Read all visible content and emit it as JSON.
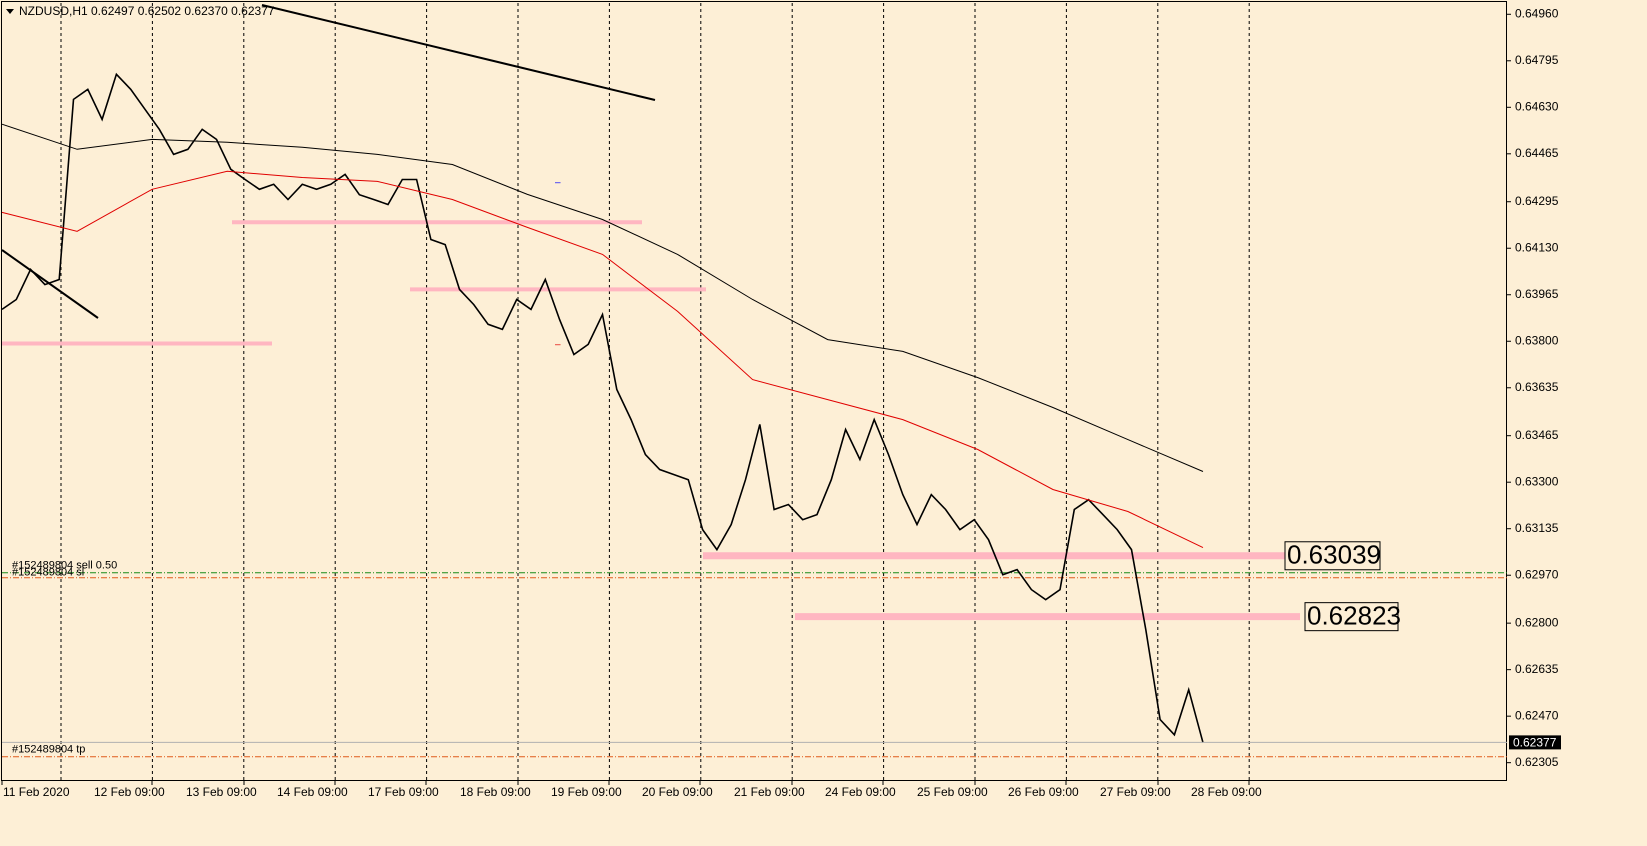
{
  "chart_data": {
    "type": "line",
    "header": "NZDUSD,H1  0.62497 0.62502 0.62370 0.62377",
    "xlabels": [
      "11 Feb 2020",
      "12 Feb 09:00",
      "13 Feb 09:00",
      "14 Feb 09:00",
      "17 Feb 09:00",
      "18 Feb 09:00",
      "19 Feb 09:00",
      "20 Feb 09:00",
      "21 Feb 09:00",
      "24 Feb 09:00",
      "25 Feb 09:00",
      "26 Feb 09:00",
      "27 Feb 09:00",
      "28 Feb 09:00"
    ],
    "ylim": [
      0.6224,
      0.65
    ],
    "yticks": [
      {
        "value": 0.6496,
        "label": "0.64960"
      },
      {
        "value": 0.64795,
        "label": "0.64795"
      },
      {
        "value": 0.6463,
        "label": "0.64630"
      },
      {
        "value": 0.64465,
        "label": "0.64465"
      },
      {
        "value": 0.64295,
        "label": "0.64295"
      },
      {
        "value": 0.6413,
        "label": "0.64130"
      },
      {
        "value": 0.63965,
        "label": "0.63965"
      },
      {
        "value": 0.638,
        "label": "0.63800"
      },
      {
        "value": 0.63635,
        "label": "0.63635"
      },
      {
        "value": 0.63465,
        "label": "0.63465"
      },
      {
        "value": 0.633,
        "label": "0.63300"
      },
      {
        "value": 0.63135,
        "label": "0.63135"
      },
      {
        "value": 0.6297,
        "label": "0.62970"
      },
      {
        "value": 0.628,
        "label": "0.62800"
      },
      {
        "value": 0.62635,
        "label": "0.62635"
      },
      {
        "value": 0.6247,
        "label": "0.62470"
      },
      {
        "value": 0.62305,
        "label": "0.62305"
      }
    ],
    "series": [
      {
        "color": "#000000",
        "values": [
          0.63913,
          0.63948,
          0.64055,
          0.64001,
          0.64019,
          0.64658,
          0.64694,
          0.64587,
          0.64747,
          0.64694,
          0.64623,
          0.64552,
          0.64463,
          0.64481,
          0.64552,
          0.64516,
          0.6441,
          0.64374,
          0.64339,
          0.64357,
          0.64303,
          0.64357,
          0.64339,
          0.64357,
          0.64392,
          0.6432,
          0.64303,
          0.64285,
          0.64374,
          0.64374,
          0.64161,
          0.64143,
          0.63984,
          0.6393,
          0.6386,
          0.63842,
          0.63948,
          0.63913,
          0.64019,
          0.63877,
          0.63753,
          0.63789,
          0.63895,
          0.63629,
          0.63522,
          0.63398,
          0.63345,
          0.63327,
          0.63309,
          0.63132,
          0.63061,
          0.6315,
          0.63309,
          0.63505,
          0.63203,
          0.63221,
          0.63167,
          0.63185,
          0.63309,
          0.63487,
          0.63381,
          0.63522,
          0.63398,
          0.63256,
          0.6315,
          0.63256,
          0.63203,
          0.63132,
          0.63167,
          0.63096,
          0.62972,
          0.6299,
          0.62919,
          0.62883,
          0.62919,
          0.63203,
          0.63238,
          0.63185,
          0.63132,
          0.63061,
          0.62777,
          0.62458,
          0.62404,
          0.62564,
          0.62376
        ]
      },
      {
        "color": "#e00000",
        "values": [
          0.64257,
          0.6419,
          0.64339,
          0.64403,
          0.64381,
          0.64367,
          0.64303,
          0.64204,
          0.64108,
          0.63906,
          0.63664,
          0.63593,
          0.63522,
          0.63416,
          0.63274,
          0.63196,
          0.63068
        ]
      },
      {
        "color": "#000000",
        "values": [
          0.6457,
          0.64481,
          0.64516,
          0.64506,
          0.64488,
          0.64463,
          0.64427,
          0.64321,
          0.64232,
          0.64108,
          0.63948,
          0.63806,
          0.63764,
          0.63671,
          0.63565,
          0.63451,
          0.63338
        ]
      }
    ],
    "levels": [
      0.63792,
      0.64222,
      0.63984,
      {
        "value": 0.63039,
        "label": "0.63039"
      },
      {
        "value": 0.62823,
        "label": "0.62823"
      }
    ],
    "level_color": "#ffb6c1",
    "orders": [
      {
        "label": "#152489804 sell 0.50",
        "value": 0.62979,
        "color": "#1a8c1a"
      },
      {
        "label": "#152489804 sl",
        "value": 0.62961,
        "color": "#e05a1a"
      },
      {
        "label": "#152489804 tp",
        "value": 0.62326,
        "color": "#e05a1a"
      }
    ],
    "current_price": {
      "value": 0.62377,
      "label": "0.62377"
    }
  }
}
